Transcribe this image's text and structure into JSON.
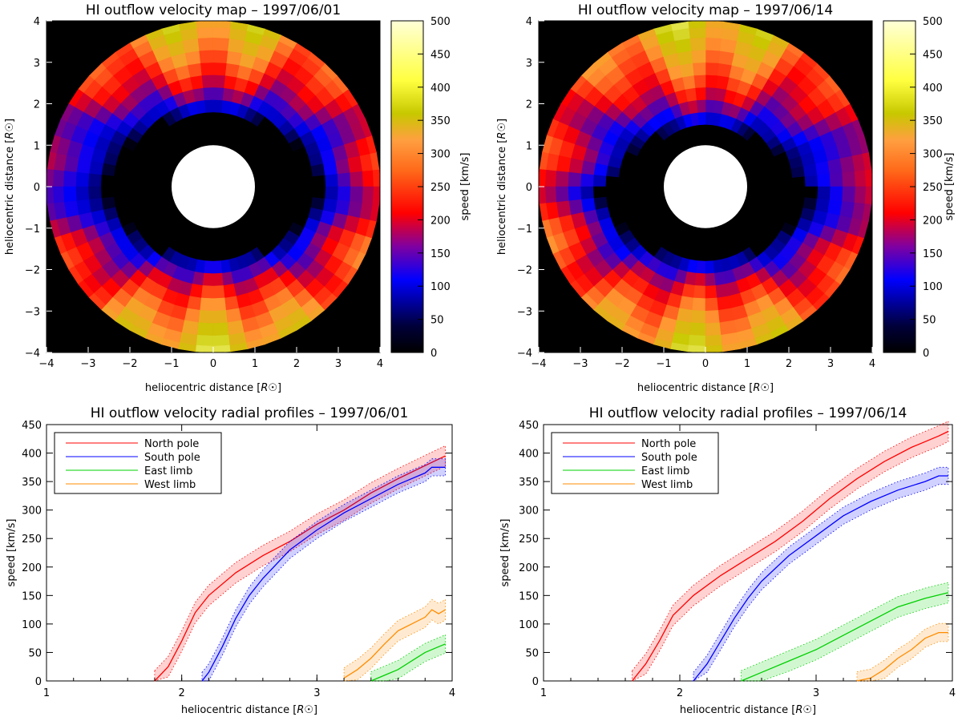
{
  "chart_data": [
    {
      "type": "heatmap",
      "title": "HI outflow velocity map – 1997/06/01",
      "xlabel": "heliocentric distance",
      "ylabel": "heliocentric distance",
      "unit": "R☉",
      "xlim": [
        -4,
        4
      ],
      "ylim": [
        -4,
        4
      ],
      "x_ticks": [
        "−4",
        "−3",
        "−2",
        "−1",
        "0",
        "1",
        "2",
        "3",
        "4"
      ],
      "y_ticks": [
        "−4",
        "−3",
        "−2",
        "−1",
        "0",
        "1",
        "2",
        "3",
        "4"
      ],
      "colorbar": {
        "label": "speed [km/s]",
        "range": [
          0,
          500
        ],
        "ticks": [
          "0",
          "50",
          "100",
          "150",
          "200",
          "250",
          "300",
          "350",
          "400",
          "450",
          "500"
        ]
      },
      "colormap": [
        "#000000",
        "#0000ff",
        "#ff0000",
        "#ff9933",
        "#c8c800",
        "#ffff99"
      ],
      "speed_north": 450,
      "speed_south": 470,
      "speed_east": 160,
      "speed_west": 240,
      "north_onset_r": 1.75,
      "south_onset_r": 1.75
    },
    {
      "type": "heatmap",
      "title": "HI outflow velocity map – 1997/06/14",
      "xlabel": "heliocentric distance",
      "ylabel": "heliocentric distance",
      "unit": "R☉",
      "xlim": [
        -4,
        4
      ],
      "ylim": [
        -4,
        4
      ],
      "x_ticks": [
        "−4",
        "−3",
        "−2",
        "−1",
        "0",
        "1",
        "2",
        "3",
        "4"
      ],
      "y_ticks": [
        "−4",
        "−3",
        "−2",
        "−1",
        "0",
        "1",
        "2",
        "3",
        "4"
      ],
      "colorbar": {
        "label": "speed [km/s]",
        "range": [
          0,
          500
        ],
        "ticks": [
          "0",
          "50",
          "100",
          "150",
          "200",
          "250",
          "300",
          "350",
          "400",
          "450",
          "500"
        ]
      },
      "colormap": [
        "#000000",
        "#0000ff",
        "#ff0000",
        "#ff9933",
        "#c8c800",
        "#ffff99"
      ],
      "speed_north": 470,
      "speed_south": 460,
      "speed_east": 260,
      "speed_west": 190,
      "north_onset_r": 1.4,
      "south_onset_r": 1.75
    },
    {
      "type": "line",
      "title": "HI outflow velocity radial profiles – 1997/06/01",
      "xlabel": "heliocentric distance",
      "ylabel": "speed [km/s]",
      "unit": "R☉",
      "xlim": [
        1,
        4
      ],
      "ylim": [
        0,
        450
      ],
      "x_ticks": [
        1,
        2,
        3,
        4
      ],
      "y_ticks": [
        0,
        50,
        100,
        150,
        200,
        250,
        300,
        350,
        400,
        450
      ],
      "legend_position": "top-left",
      "series": [
        {
          "name": "North pole",
          "color": "#ff0000",
          "x": [
            1.8,
            1.9,
            2.0,
            2.1,
            2.2,
            2.4,
            2.6,
            2.8,
            3.0,
            3.2,
            3.4,
            3.6,
            3.8,
            3.95
          ],
          "y": [
            0,
            25,
            70,
            120,
            150,
            190,
            220,
            245,
            275,
            300,
            330,
            355,
            378,
            395
          ],
          "spread": 18
        },
        {
          "name": "South pole",
          "color": "#0000ff",
          "x": [
            2.15,
            2.2,
            2.3,
            2.4,
            2.5,
            2.6,
            2.8,
            3.0,
            3.2,
            3.4,
            3.6,
            3.8,
            3.85,
            3.95
          ],
          "y": [
            0,
            15,
            60,
            110,
            150,
            180,
            230,
            265,
            295,
            320,
            345,
            365,
            375,
            375
          ],
          "spread": 15
        },
        {
          "name": "East limb",
          "color": "#00d000",
          "x": [
            3.4,
            3.5,
            3.6,
            3.7,
            3.8,
            3.9,
            3.95
          ],
          "y": [
            0,
            10,
            20,
            35,
            50,
            60,
            65
          ],
          "spread": 16
        },
        {
          "name": "West limb",
          "color": "#ff8c00",
          "x": [
            3.2,
            3.3,
            3.4,
            3.5,
            3.6,
            3.7,
            3.8,
            3.85,
            3.9,
            3.95
          ],
          "y": [
            5,
            20,
            40,
            65,
            88,
            100,
            112,
            125,
            118,
            125
          ],
          "spread": 18
        }
      ]
    },
    {
      "type": "line",
      "title": "HI outflow velocity radial profiles – 1997/06/14",
      "xlabel": "heliocentric distance",
      "ylabel": "speed [km/s]",
      "unit": "R☉",
      "xlim": [
        1,
        4
      ],
      "ylim": [
        0,
        450
      ],
      "x_ticks": [
        1,
        2,
        3,
        4
      ],
      "y_ticks": [
        0,
        50,
        100,
        150,
        200,
        250,
        300,
        350,
        400,
        450
      ],
      "legend_position": "top-left",
      "series": [
        {
          "name": "North pole",
          "color": "#ff0000",
          "x": [
            1.65,
            1.75,
            1.85,
            1.95,
            2.1,
            2.3,
            2.5,
            2.7,
            2.9,
            3.1,
            3.3,
            3.5,
            3.7,
            3.9,
            3.97
          ],
          "y": [
            0,
            30,
            70,
            115,
            150,
            185,
            215,
            245,
            280,
            320,
            355,
            385,
            410,
            430,
            438
          ],
          "spread": 18
        },
        {
          "name": "South pole",
          "color": "#0000ff",
          "x": [
            2.1,
            2.2,
            2.3,
            2.4,
            2.5,
            2.6,
            2.8,
            3.0,
            3.2,
            3.4,
            3.6,
            3.8,
            3.9,
            3.97
          ],
          "y": [
            0,
            30,
            70,
            110,
            145,
            175,
            220,
            255,
            290,
            315,
            335,
            350,
            360,
            360
          ],
          "spread": 15
        },
        {
          "name": "East limb",
          "color": "#00d000",
          "x": [
            2.45,
            2.6,
            2.8,
            3.0,
            3.2,
            3.4,
            3.6,
            3.8,
            3.97
          ],
          "y": [
            0,
            15,
            35,
            55,
            80,
            105,
            130,
            145,
            155
          ],
          "spread": 18
        },
        {
          "name": "West limb",
          "color": "#ff8c00",
          "x": [
            3.3,
            3.4,
            3.5,
            3.6,
            3.7,
            3.8,
            3.9,
            3.97
          ],
          "y": [
            0,
            5,
            20,
            40,
            55,
            75,
            85,
            85
          ],
          "spread": 16
        }
      ]
    }
  ]
}
